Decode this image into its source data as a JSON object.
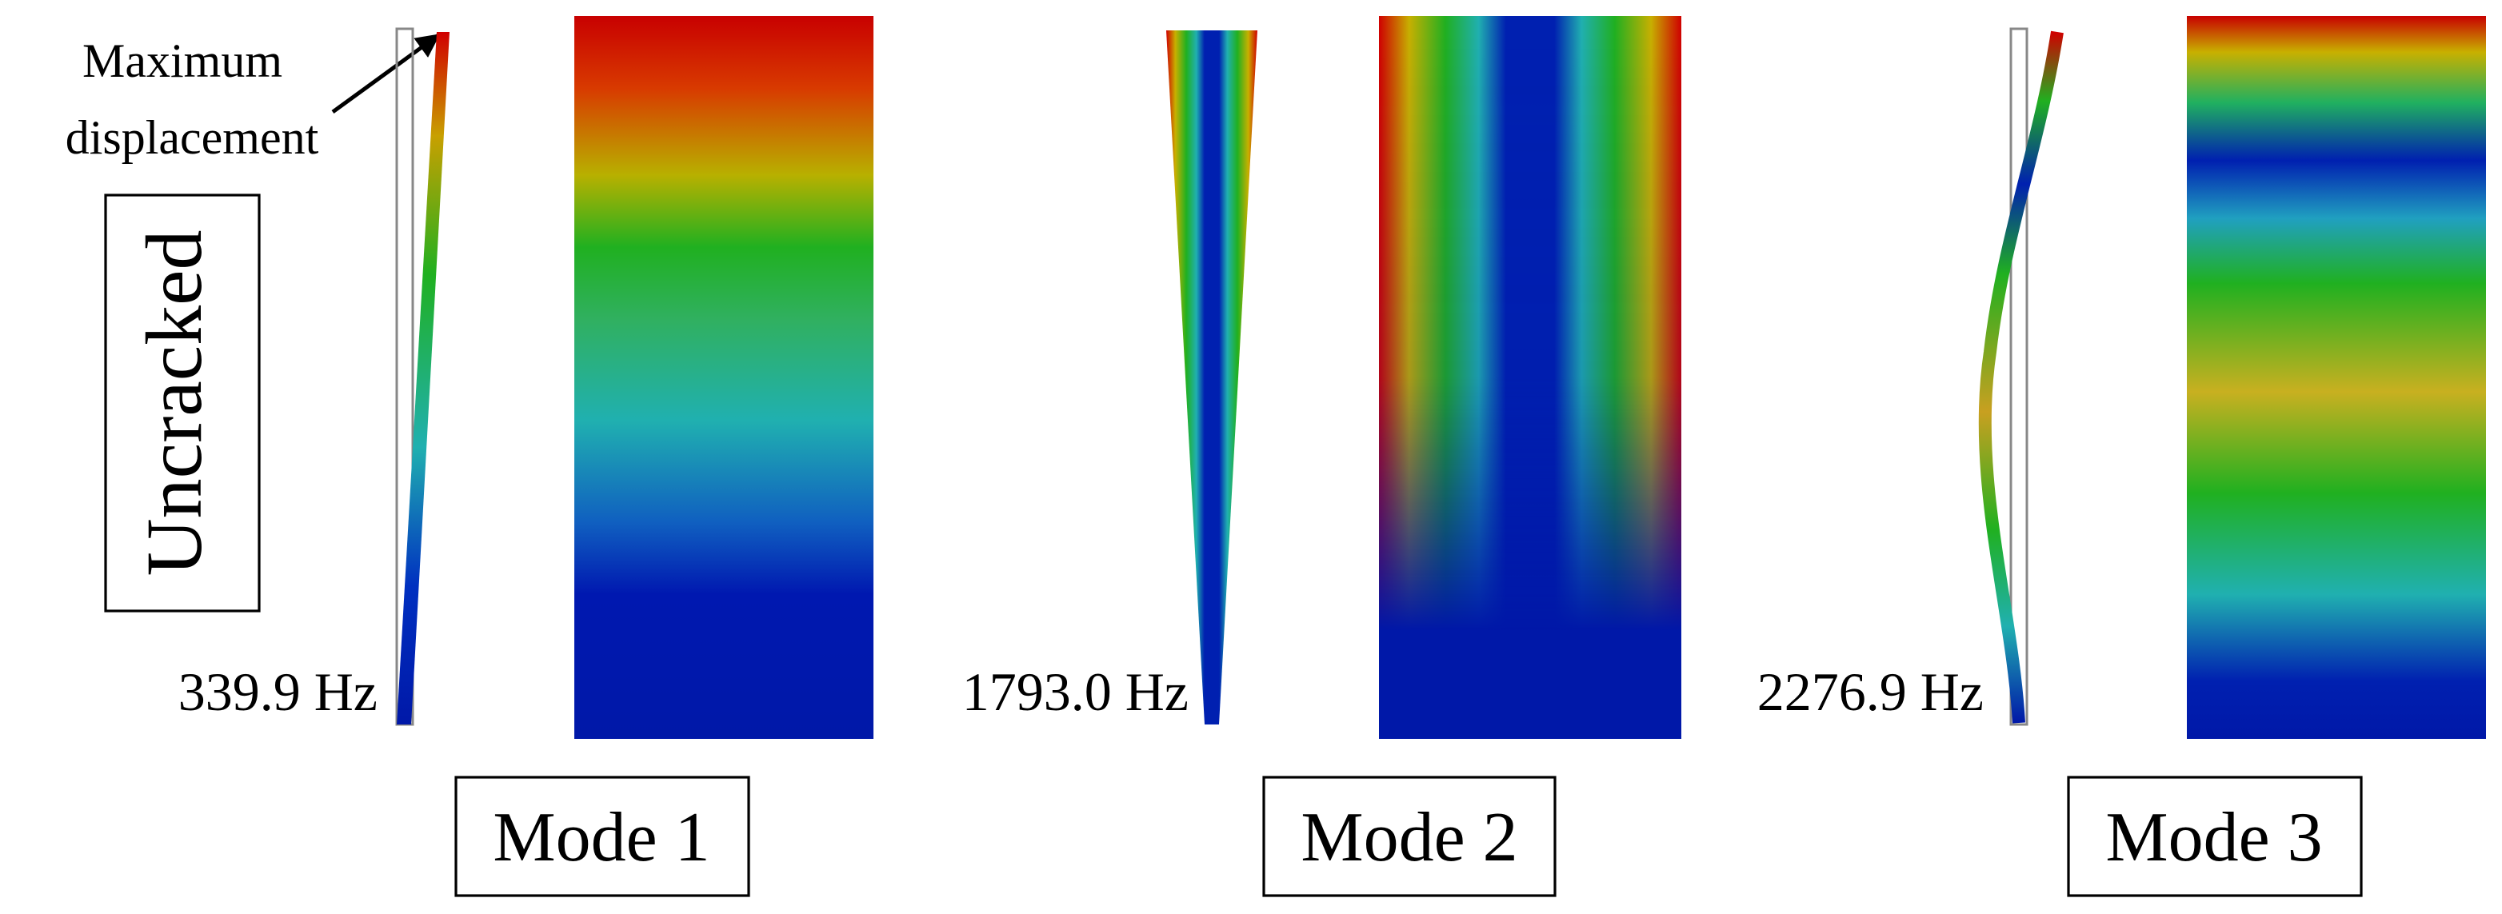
{
  "annotation": {
    "lines": [
      "Maximum",
      "displacement"
    ]
  },
  "state_label": "Uncracked",
  "modes": [
    {
      "label": "Mode 1",
      "frequency": "339.9 Hz"
    },
    {
      "label": "Mode 2",
      "frequency": "1793.0 Hz"
    },
    {
      "label": "Mode 3",
      "frequency": "2276.9 Hz"
    }
  ]
}
